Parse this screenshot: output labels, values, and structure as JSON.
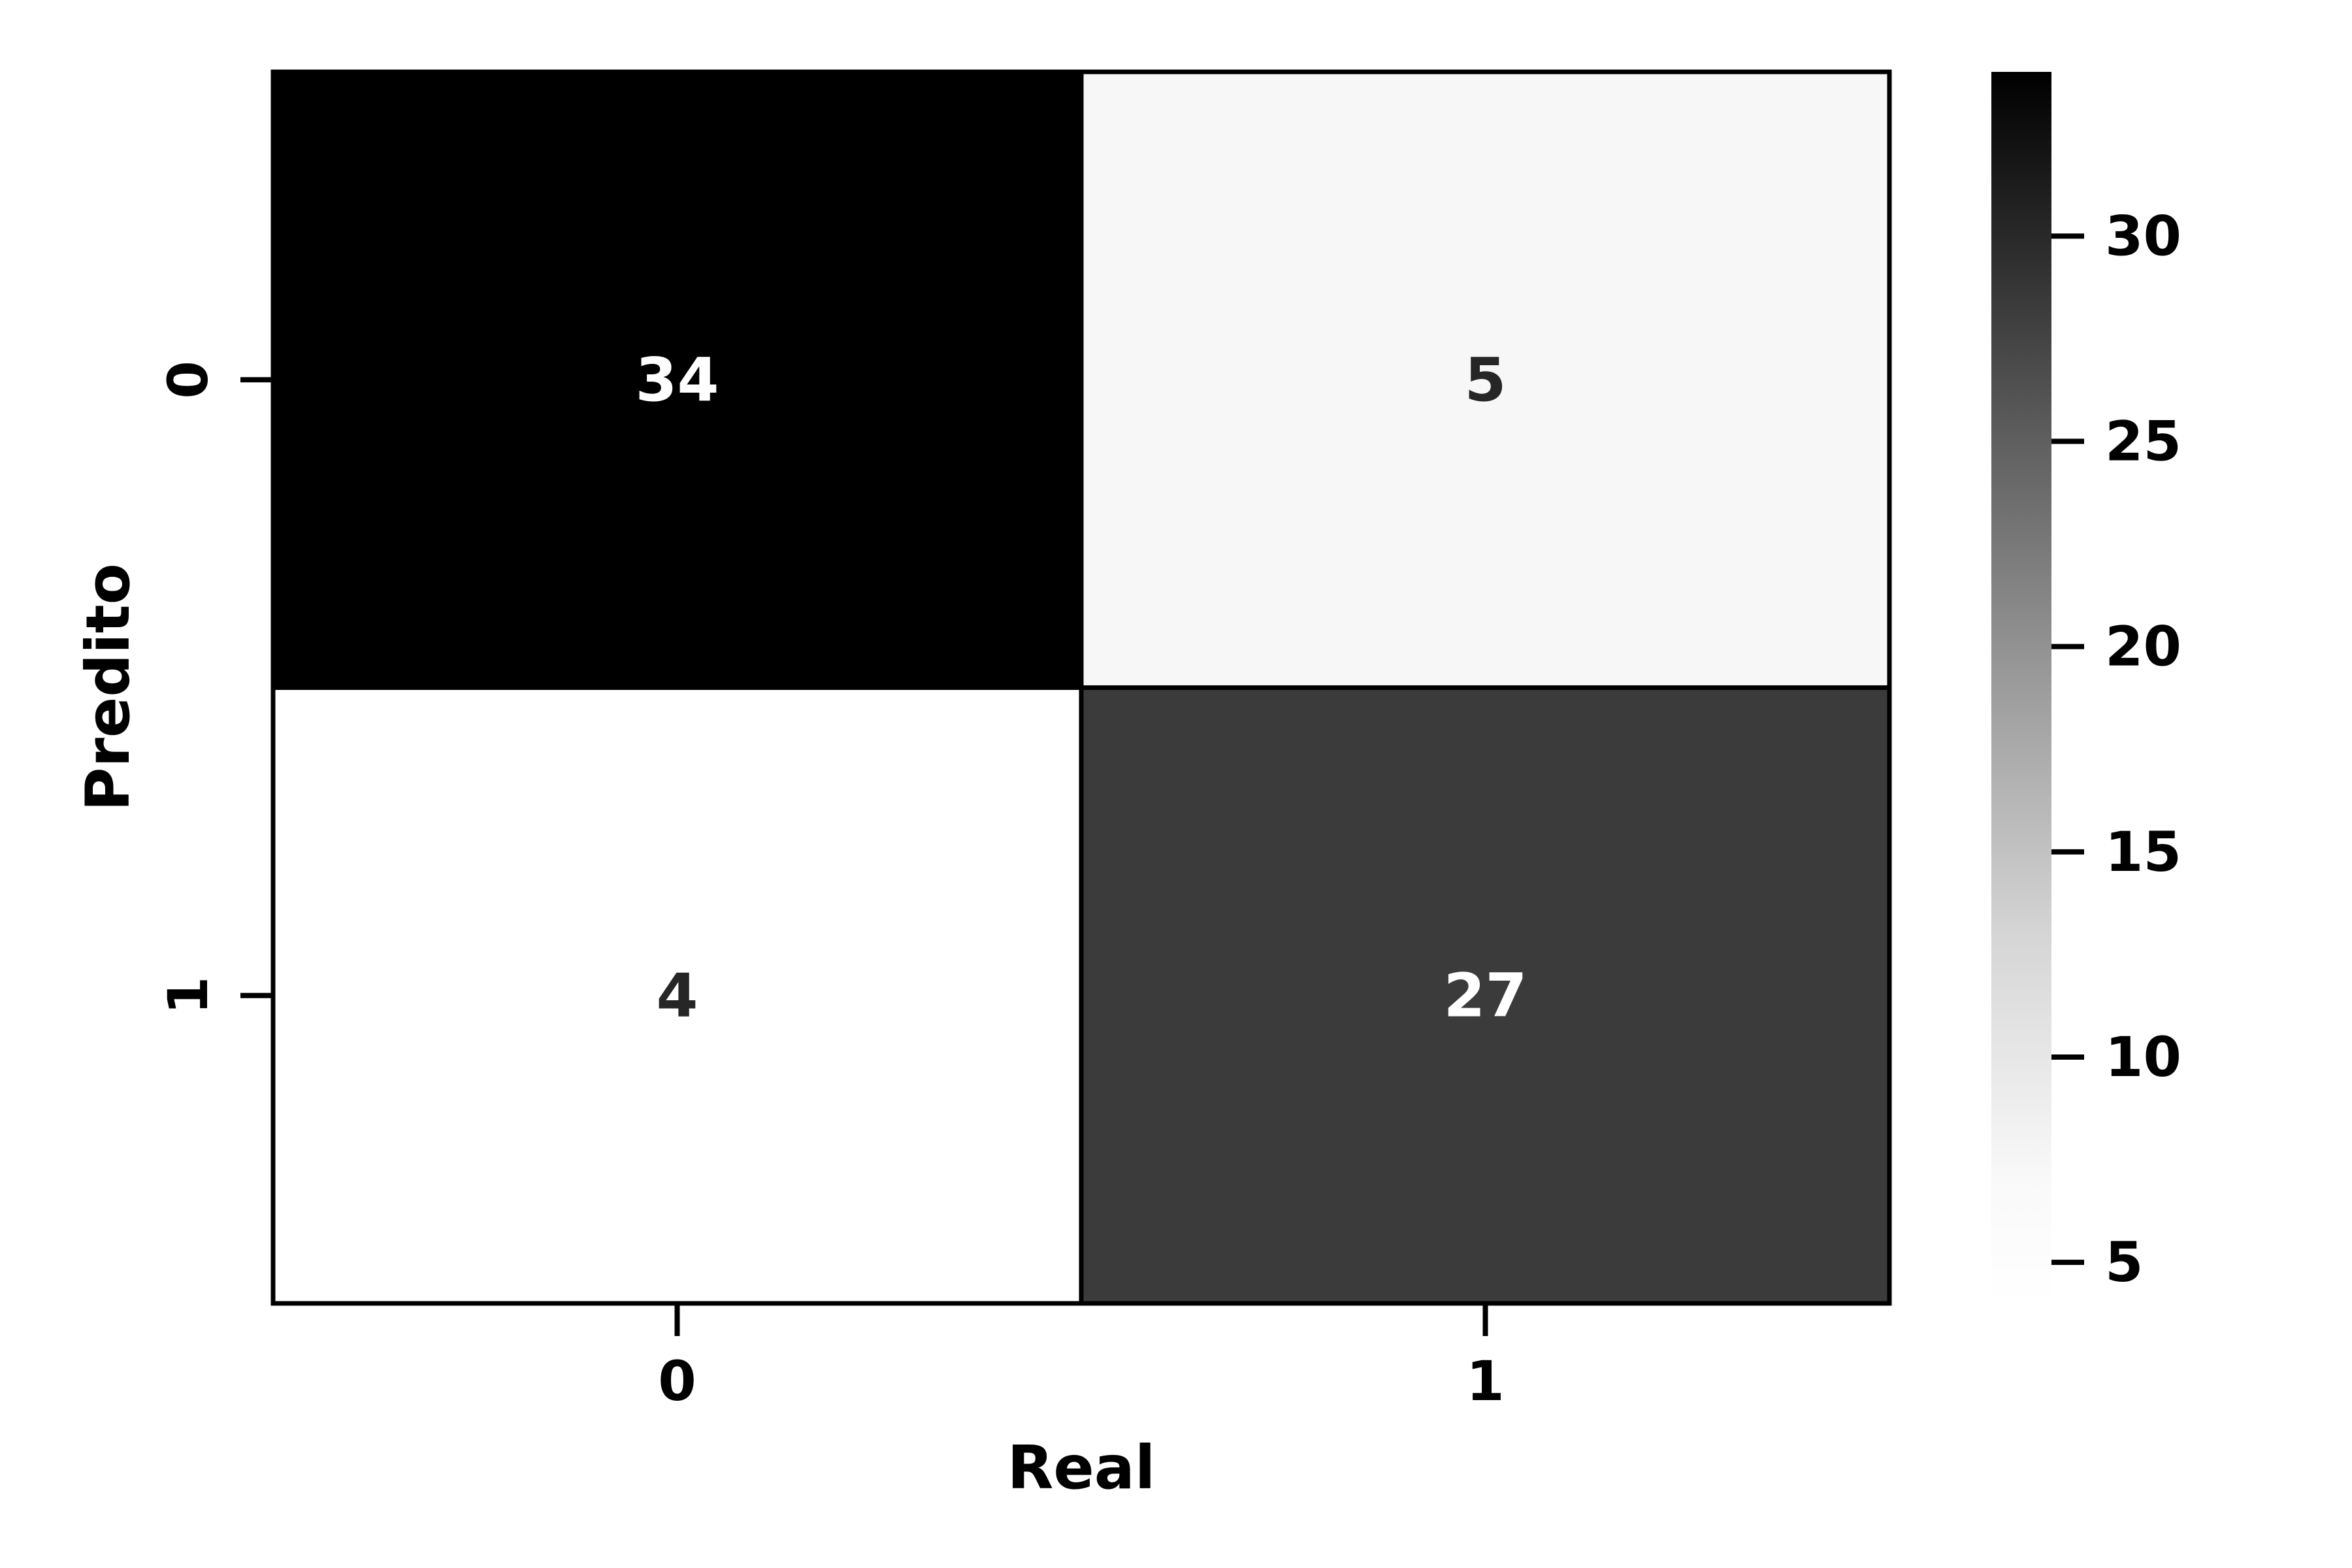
{
  "chart_data": {
    "type": "heatmap",
    "xlabel": "Real",
    "ylabel": "Predito",
    "x_categories": [
      "0",
      "1"
    ],
    "y_categories": [
      "0",
      "1"
    ],
    "values": [
      [
        34,
        5
      ],
      [
        4,
        27
      ]
    ],
    "colormap": "Greys",
    "color_min": "#ffffff",
    "color_max": "#000000",
    "vmin": 4,
    "vmax": 34,
    "colorbar": {
      "ticks": [
        "5",
        "10",
        "15",
        "20",
        "25",
        "30"
      ]
    },
    "grid": false,
    "legend": "colorbar-right",
    "annotations": [
      "34",
      "5",
      "4",
      "27"
    ]
  }
}
